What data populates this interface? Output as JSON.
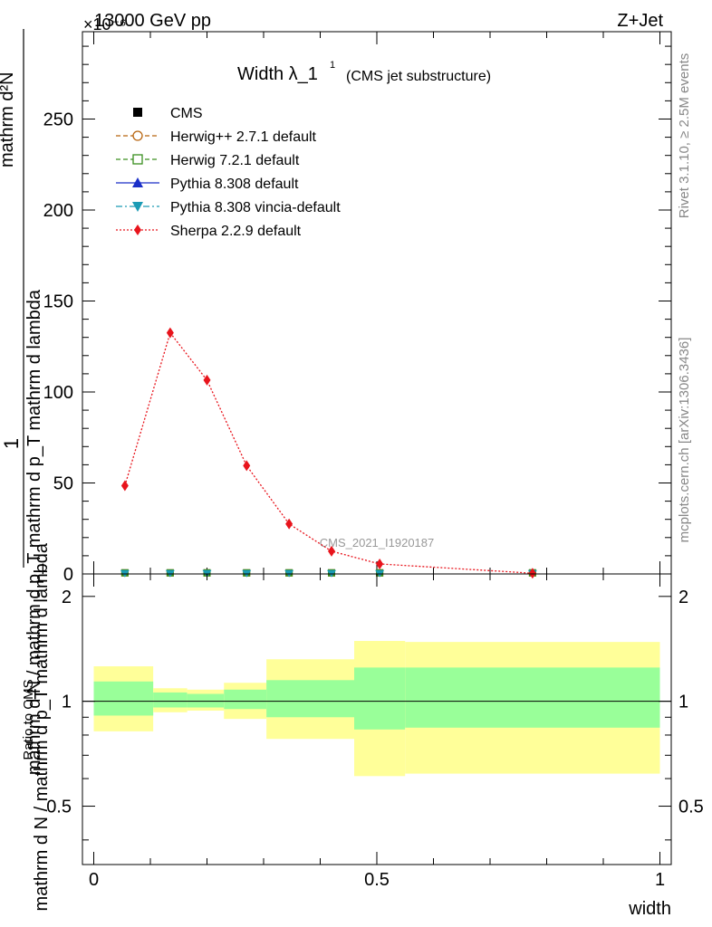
{
  "header": {
    "left": "13000 GeV pp",
    "right": "Z+Jet",
    "exponent": "×10⁻⁶"
  },
  "title": {
    "main": "Width λ_1",
    "superscript": "1",
    "sub": "(CMS jet substructure)"
  },
  "side_labels": {
    "top": "Rivet 3.1.10, ≥ 2.5M events",
    "bottom": "mcplots.cern.ch [arXiv:1306.3436]"
  },
  "watermark": "CMS_2021_I1920187",
  "legend": [
    {
      "label": "CMS",
      "color": "#000000",
      "marker": "square-filled",
      "line": "none"
    },
    {
      "label": "Herwig++ 2.7.1 default",
      "color": "#b8650f",
      "marker": "circle-open",
      "line": "dashed"
    },
    {
      "label": "Herwig 7.2.1 default",
      "color": "#3a8f1f",
      "marker": "square-open",
      "line": "dashed"
    },
    {
      "label": "Pythia 8.308 default",
      "color": "#1a2fc8",
      "marker": "triangle-up",
      "line": "solid"
    },
    {
      "label": "Pythia 8.308 vincia-default",
      "color": "#1a9bb5",
      "marker": "triangle-down",
      "line": "dashdot"
    },
    {
      "label": "Sherpa 2.2.9 default",
      "color": "#e8141c",
      "marker": "diamond",
      "line": "dotted"
    }
  ],
  "chart_data": [
    {
      "type": "line",
      "panel": "main",
      "xlim": [
        -0.02,
        1.02
      ],
      "ylim": [
        0,
        298
      ],
      "ylabel_lines": [
        "mathrm d N / mathrm d p_T mathrm d lambda",
        "mathrm d N / mathrm d p_T mathrm d p_T mathrm d lambda",
        "mathrm d²N"
      ],
      "ylabel": "1/(mathrm d N / mathrm d p_T) · mathrm d²N/(mathrm d p_T mathrm d lambda)",
      "ylabel_numerator": "1",
      "yticks": [
        0,
        50,
        100,
        150,
        200,
        250
      ],
      "ytick_labels": [
        "0",
        "50",
        "100",
        "150",
        "200",
        "250"
      ],
      "x": [
        0.055,
        0.135,
        0.2,
        0.27,
        0.345,
        0.42,
        0.505,
        0.775
      ],
      "series": [
        {
          "name": "Sherpa 2.2.9 default",
          "values": [
            48.5,
            132.5,
            106.5,
            59.5,
            27.5,
            12.5,
            5.5,
            0.4
          ]
        },
        {
          "name": "CMS",
          "values": [
            0.6,
            0.6,
            0.6,
            0.6,
            0.6,
            0.6,
            0.6,
            0.6
          ]
        }
      ]
    },
    {
      "type": "area",
      "panel": "ratio",
      "xlabel": "width",
      "ylabel": "Ratio to CMS",
      "xlim": [
        -0.02,
        1.02
      ],
      "ylim": [
        0.34,
        2.32
      ],
      "xticks": [
        0,
        0.5,
        1
      ],
      "xtick_labels": [
        "0",
        "0.5",
        "1"
      ],
      "yticks": [
        0.5,
        1,
        2
      ],
      "ytick_labels": [
        "0.5",
        "1",
        "2"
      ],
      "bins": [
        [
          0.0,
          0.105
        ],
        [
          0.105,
          0.165
        ],
        [
          0.165,
          0.23
        ],
        [
          0.23,
          0.305
        ],
        [
          0.305,
          0.46
        ],
        [
          0.46,
          0.55
        ],
        [
          0.55,
          1.0
        ]
      ],
      "stat_band": [
        [
          0.91,
          1.14
        ],
        [
          0.96,
          1.06
        ],
        [
          0.96,
          1.05
        ],
        [
          0.95,
          1.08
        ],
        [
          0.9,
          1.15
        ],
        [
          0.83,
          1.25
        ],
        [
          0.84,
          1.25
        ]
      ],
      "total_band": [
        [
          0.82,
          1.26
        ],
        [
          0.93,
          1.09
        ],
        [
          0.94,
          1.08
        ],
        [
          0.89,
          1.13
        ],
        [
          0.78,
          1.32
        ],
        [
          0.61,
          1.49
        ],
        [
          0.62,
          1.48
        ]
      ],
      "reference": 1
    }
  ]
}
